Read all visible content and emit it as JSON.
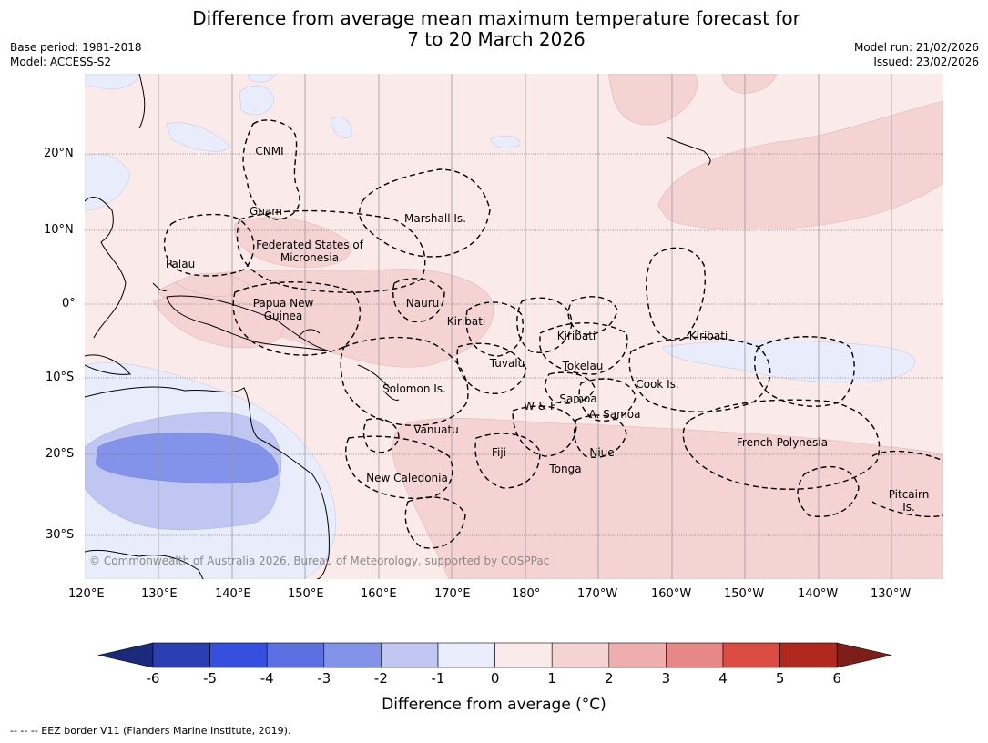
{
  "title": {
    "line1": "Difference from average mean maximum temperature forecast for",
    "line2": "7 to 20 March 2026"
  },
  "header": {
    "base_period": "Base period: 1981-2018",
    "model": "Model: ACCESS-S2",
    "model_run": "Model run: 21/02/2026",
    "issued": "Issued: 23/02/2026"
  },
  "map": {
    "lon_ticks": [
      "120°E",
      "130°E",
      "140°E",
      "150°E",
      "160°E",
      "170°E",
      "180°",
      "170°W",
      "160°W",
      "150°W",
      "140°W",
      "130°W"
    ],
    "lat_ticks": [
      "20°N",
      "10°N",
      "0°",
      "10°S",
      "20°S",
      "30°S"
    ],
    "regions": [
      {
        "label": "CNMI"
      },
      {
        "label": "Guam"
      },
      {
        "label": "Marshall Is."
      },
      {
        "label": "Federated States of Micronesia"
      },
      {
        "label": "Palau"
      },
      {
        "label": "Papua New Guinea"
      },
      {
        "label": "Nauru"
      },
      {
        "label": "Kiribati"
      },
      {
        "label": "Kiribati"
      },
      {
        "label": "Kiribati"
      },
      {
        "label": "Tuvalu"
      },
      {
        "label": "Tokelau"
      },
      {
        "label": "Solomon Is."
      },
      {
        "label": "Cook Is."
      },
      {
        "label": "W & F"
      },
      {
        "label": "Samoa"
      },
      {
        "label": "A. Samoa"
      },
      {
        "label": "Vanuatu"
      },
      {
        "label": "Fiji"
      },
      {
        "label": "Niue"
      },
      {
        "label": "French Polynesia"
      },
      {
        "label": "Tonga"
      },
      {
        "label": "New Caledonia"
      },
      {
        "label": "Pitcairn Is."
      }
    ],
    "copyright": "© Commonwealth of Australia 2026, Bureau of Meteorology, supported by COSPPac"
  },
  "colorbar": {
    "ticks": [
      "-6",
      "-5",
      "-4",
      "-3",
      "-2",
      "-1",
      "0",
      "1",
      "2",
      "3",
      "4",
      "5",
      "6"
    ],
    "colors": [
      "#1c2a7c",
      "#2a3fb3",
      "#3550e0",
      "#5b70e3",
      "#8493ea",
      "#bec6f1",
      "#e9ecfb",
      "#fbeaea",
      "#f5d3d3",
      "#efaeae",
      "#e88886",
      "#dc4b42",
      "#b1281f",
      "#7d1d18"
    ],
    "label": "Difference from average (°C)"
  },
  "footer": {
    "legend_line": "-- -- -- EEZ border V11 (Flanders Marine Institute, 2019)."
  },
  "chart_data": {
    "type": "heatmap",
    "title": "Difference from average mean maximum temperature forecast for 7 to 20 March 2026",
    "period": "7 to 20 March 2026",
    "base_period": "1981-2018",
    "model": "ACCESS-S2",
    "lon_range": [
      "120°E",
      "125°W"
    ],
    "lat_range": [
      "~30°N",
      "~35°S"
    ],
    "legend_categories": [
      {
        "range": "< -6"
      },
      {
        "range": "-6 to -5"
      },
      {
        "range": "-5 to -4"
      },
      {
        "range": "-4 to -3"
      },
      {
        "range": "-3 to -2"
      },
      {
        "range": "-2 to -1"
      },
      {
        "range": "-1 to 0"
      },
      {
        "range": "0 to 1"
      },
      {
        "range": "1 to 2"
      },
      {
        "range": "2 to 3"
      },
      {
        "range": "3 to 4"
      },
      {
        "range": "4 to 5"
      },
      {
        "range": "5 to 6"
      },
      {
        "range": "> 6"
      }
    ],
    "xlabel": "",
    "ylabel": "",
    "colorbar_label": "Difference from average (°C)"
  }
}
